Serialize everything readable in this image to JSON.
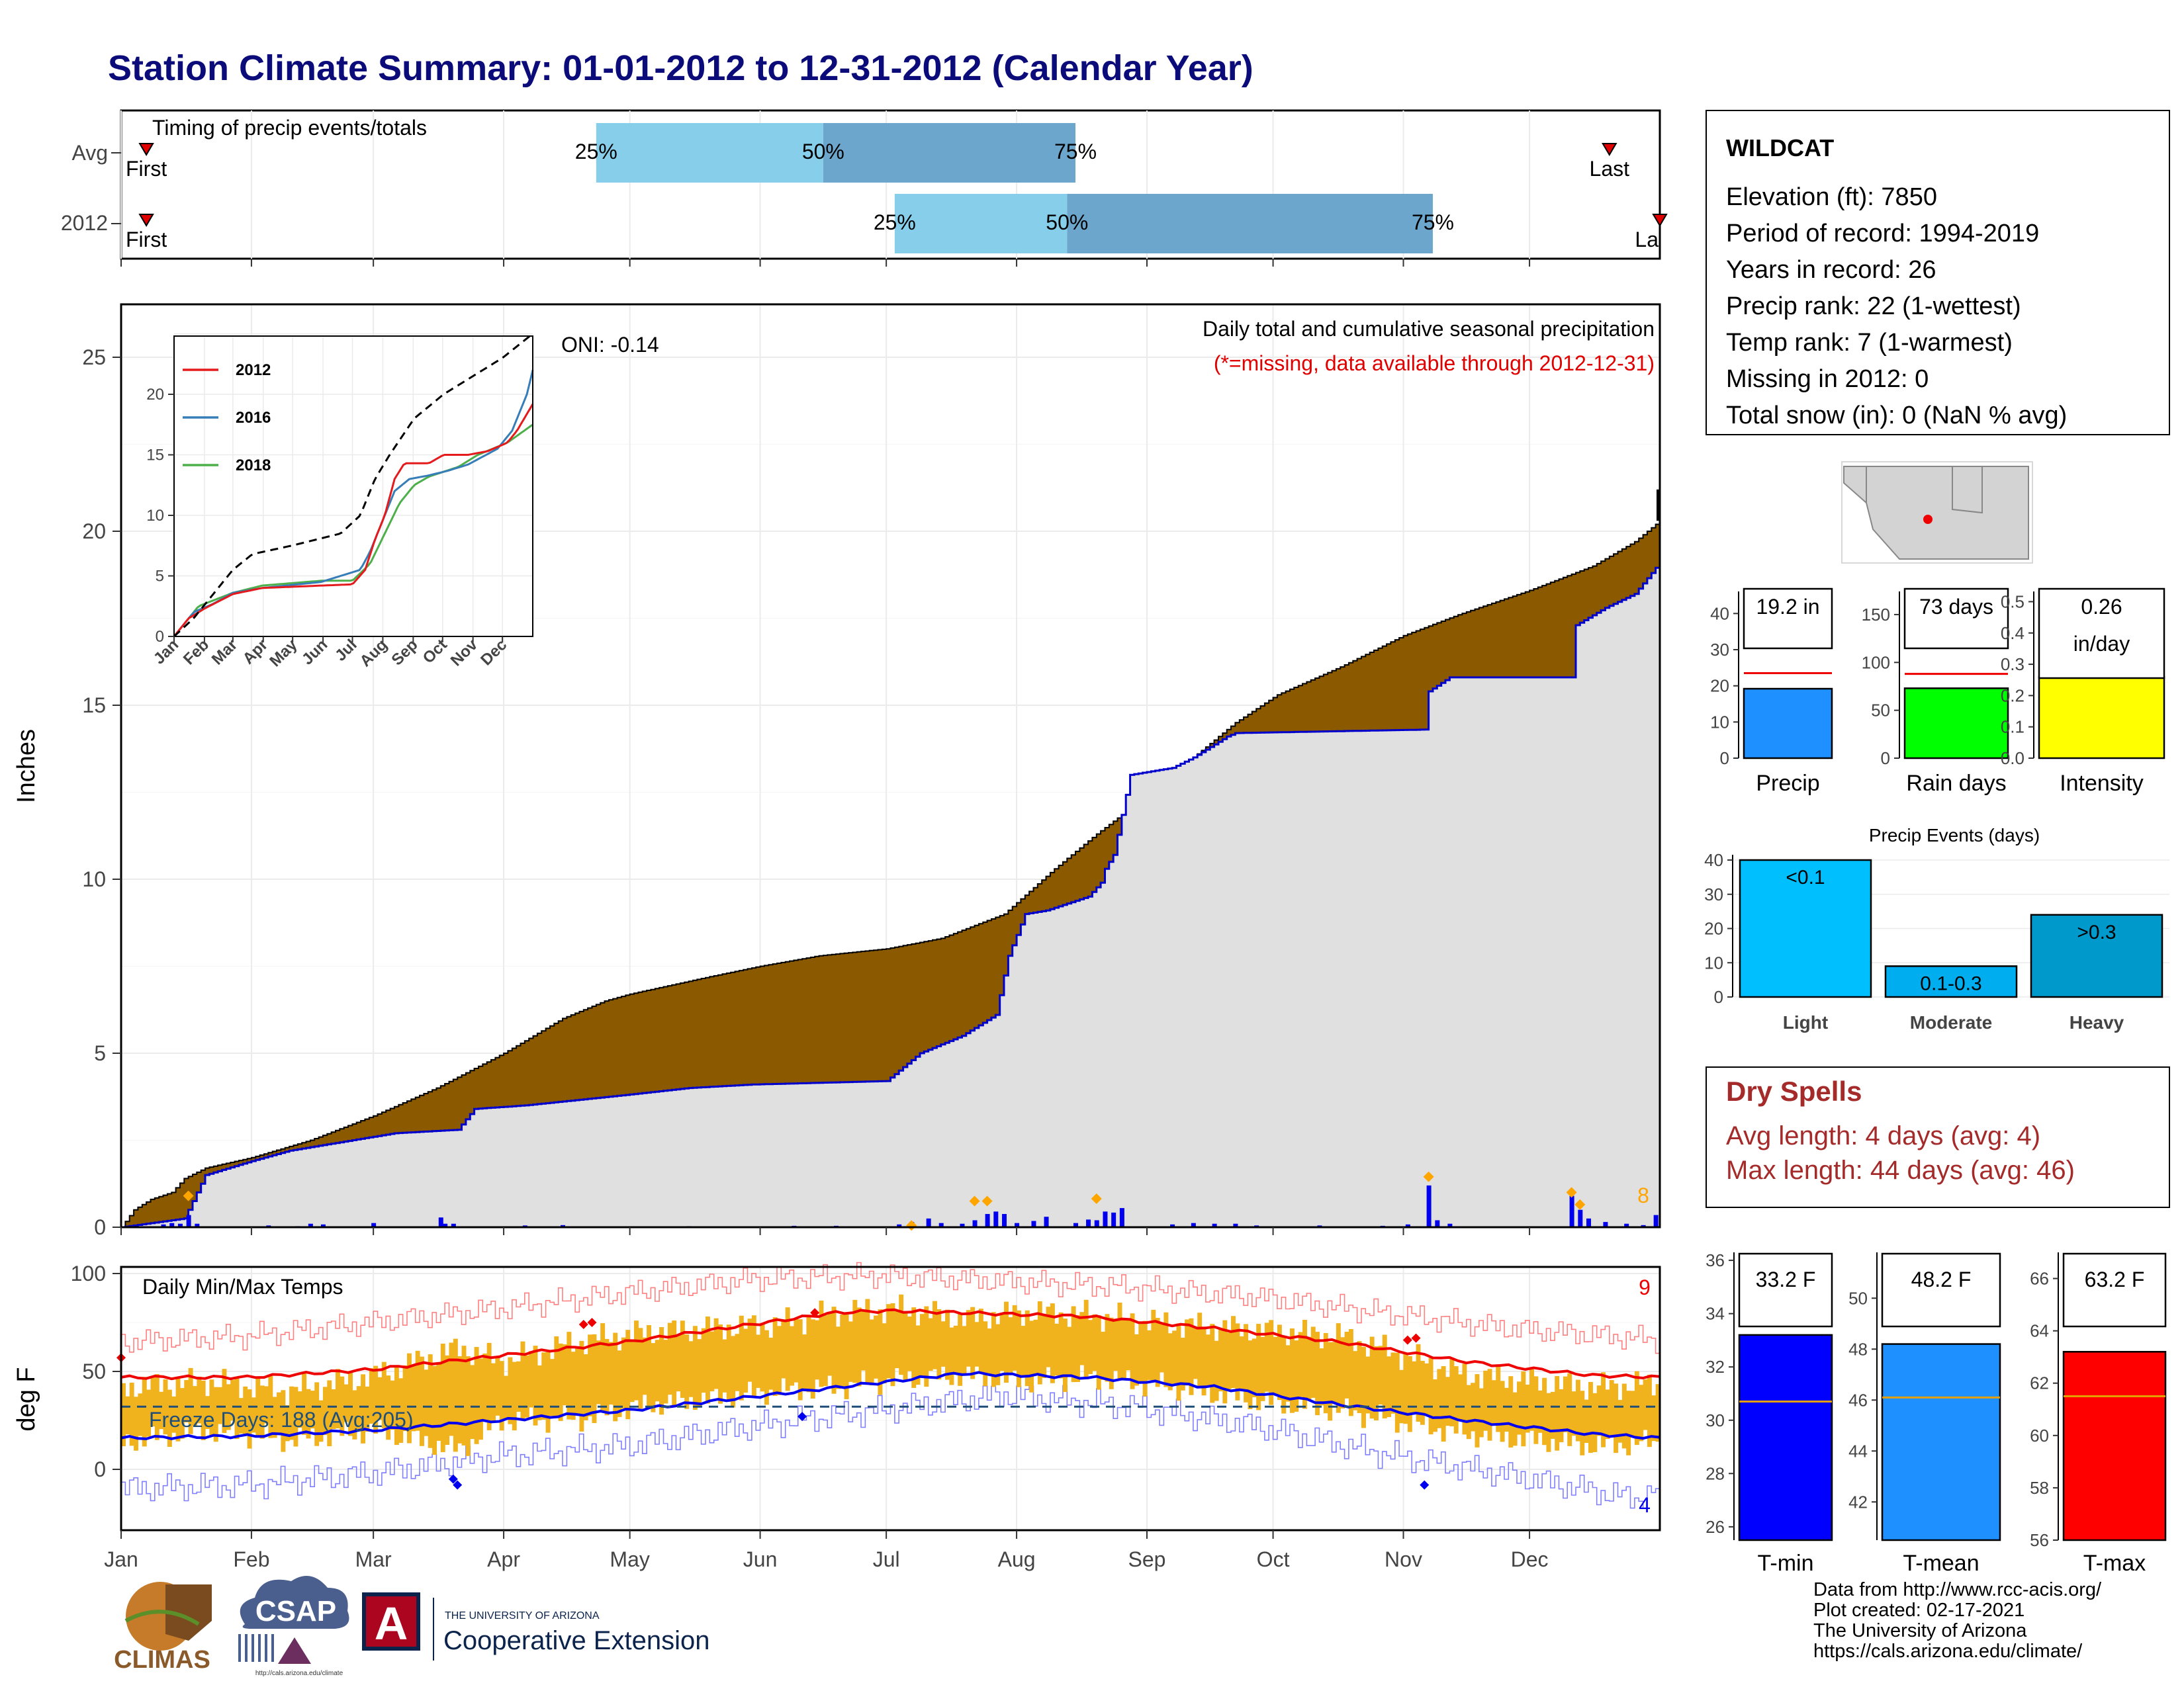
{
  "title": "Station Climate Summary: 01-01-2012 to 12-31-2012 (Calendar Year)",
  "timing": {
    "title": "Timing of precip events/totals",
    "row_labels": [
      "Avg",
      "2012"
    ],
    "first_label": "First",
    "last_label": "Last",
    "last_label_clipped": "La",
    "pct_labels": [
      "25%",
      "50%",
      "75%"
    ],
    "avg": {
      "first_doy": 6,
      "p25_doy": 113,
      "p50_doy": 167,
      "p75_doy": 227,
      "last_doy": 354
    },
    "y2012": {
      "first_doy": 6,
      "p25_doy": 184,
      "p50_doy": 225,
      "p75_doy": 312,
      "last_doy": 366
    }
  },
  "main": {
    "ylabel": "Inches",
    "y_ticks": [
      "0",
      "5",
      "10",
      "15",
      "20",
      "25"
    ],
    "annot_title": "Daily total and cumulative seasonal precipitation",
    "annot_missing": "(*=missing, data available through 2012-12-31)",
    "oni": "ONI: -0.14",
    "count_label": "8",
    "colors": {
      "avg_fill": "#8B5A00",
      "year_fill": "#E0E0E0",
      "year_line": "#0000CC",
      "bars": "#0000EE",
      "marker": "#FFA500"
    },
    "avg_cum": [
      [
        0,
        0
      ],
      [
        3,
        0.5
      ],
      [
        7,
        0.8
      ],
      [
        12,
        1.0
      ],
      [
        15,
        1.4
      ],
      [
        20,
        1.7
      ],
      [
        31,
        2.0
      ],
      [
        45,
        2.5
      ],
      [
        60,
        3.2
      ],
      [
        75,
        4.0
      ],
      [
        91,
        5.0
      ],
      [
        105,
        6.0
      ],
      [
        115,
        6.5
      ],
      [
        121,
        6.7
      ],
      [
        140,
        7.2
      ],
      [
        152,
        7.5
      ],
      [
        166,
        7.8
      ],
      [
        182,
        8.0
      ],
      [
        195,
        8.3
      ],
      [
        210,
        9.0
      ],
      [
        222,
        10.3
      ],
      [
        232,
        11.3
      ],
      [
        244,
        12.4
      ],
      [
        255,
        13.5
      ],
      [
        265,
        14.5
      ],
      [
        275,
        15.3
      ],
      [
        290,
        16.1
      ],
      [
        305,
        17.0
      ],
      [
        318,
        17.6
      ],
      [
        335,
        18.3
      ],
      [
        350,
        19.0
      ],
      [
        360,
        19.7
      ],
      [
        366,
        20.3
      ]
    ],
    "year_cum": [
      [
        0,
        0
      ],
      [
        15,
        0.25
      ],
      [
        18,
        1.0
      ],
      [
        20,
        1.5
      ],
      [
        31,
        1.9
      ],
      [
        40,
        2.2
      ],
      [
        50,
        2.4
      ],
      [
        65,
        2.7
      ],
      [
        80,
        2.8
      ],
      [
        84,
        3.4
      ],
      [
        96,
        3.5
      ],
      [
        120,
        3.8
      ],
      [
        135,
        4.0
      ],
      [
        150,
        4.1
      ],
      [
        182,
        4.2
      ],
      [
        190,
        5.0
      ],
      [
        200,
        5.5
      ],
      [
        208,
        6.1
      ],
      [
        211,
        7.8
      ],
      [
        215,
        9.0
      ],
      [
        220,
        9.1
      ],
      [
        230,
        9.5
      ],
      [
        233,
        9.9
      ],
      [
        234,
        10.3
      ],
      [
        236,
        10.7
      ],
      [
        240,
        13.0
      ],
      [
        250,
        13.2
      ],
      [
        255,
        13.5
      ],
      [
        263,
        14.1
      ],
      [
        265,
        14.2
      ],
      [
        310,
        14.3
      ],
      [
        311,
        15.4
      ],
      [
        316,
        15.8
      ],
      [
        345,
        15.8
      ],
      [
        346,
        17.3
      ],
      [
        353,
        17.8
      ],
      [
        360,
        18.2
      ],
      [
        366,
        19.1
      ]
    ],
    "precip_events": [
      [
        10,
        0.08
      ],
      [
        12,
        0.12
      ],
      [
        14,
        0.1
      ],
      [
        16,
        0.35
      ],
      [
        18,
        0.1
      ],
      [
        35,
        0.05
      ],
      [
        42,
        0.03
      ],
      [
        45,
        0.1
      ],
      [
        48,
        0.08
      ],
      [
        60,
        0.12
      ],
      [
        76,
        0.28
      ],
      [
        77,
        0.1
      ],
      [
        79,
        0.1
      ],
      [
        96,
        0.05
      ],
      [
        105,
        0.06
      ],
      [
        135,
        0.03
      ],
      [
        160,
        0.04
      ],
      [
        170,
        0.04
      ],
      [
        185,
        0.08
      ],
      [
        188,
        0.15
      ],
      [
        192,
        0.25
      ],
      [
        195,
        0.12
      ],
      [
        200,
        0.1
      ],
      [
        203,
        0.2
      ],
      [
        206,
        0.38
      ],
      [
        208,
        0.45
      ],
      [
        210,
        0.38
      ],
      [
        213,
        0.12
      ],
      [
        217,
        0.18
      ],
      [
        220,
        0.3
      ],
      [
        227,
        0.12
      ],
      [
        230,
        0.22
      ],
      [
        232,
        0.2
      ],
      [
        234,
        0.45
      ],
      [
        236,
        0.42
      ],
      [
        238,
        0.55
      ],
      [
        250,
        0.08
      ],
      [
        255,
        0.12
      ],
      [
        260,
        0.1
      ],
      [
        265,
        0.1
      ],
      [
        270,
        0.05
      ],
      [
        285,
        0.05
      ],
      [
        300,
        0.04
      ],
      [
        306,
        0.08
      ],
      [
        311,
        1.2
      ],
      [
        313,
        0.2
      ],
      [
        316,
        0.1
      ],
      [
        345,
        0.9
      ],
      [
        347,
        0.5
      ],
      [
        349,
        0.25
      ],
      [
        353,
        0.15
      ],
      [
        358,
        0.1
      ],
      [
        362,
        0.06
      ],
      [
        365,
        0.35
      ]
    ],
    "markers": [
      [
        16,
        0.9
      ],
      [
        188,
        0.05
      ],
      [
        203,
        0.75
      ],
      [
        206,
        0.75
      ],
      [
        232,
        0.82
      ],
      [
        311,
        1.45
      ],
      [
        345,
        1.0
      ],
      [
        347,
        0.65
      ]
    ]
  },
  "inset": {
    "legend": [
      {
        "name": "2012",
        "color": "#E41A1C"
      },
      {
        "name": "2016",
        "color": "#377EB8"
      },
      {
        "name": "2018",
        "color": "#4DAF4A"
      }
    ],
    "y_ticks": [
      "0",
      "5",
      "10",
      "15",
      "20"
    ],
    "months": [
      "Jan",
      "Feb",
      "Mar",
      "Apr",
      "May",
      "Jun",
      "Jul",
      "Aug",
      "Sep",
      "Oct",
      "Nov",
      "Dec"
    ],
    "avg": [
      [
        0,
        0
      ],
      [
        20,
        1.5
      ],
      [
        40,
        3.5
      ],
      [
        60,
        5.5
      ],
      [
        80,
        6.8
      ],
      [
        120,
        7.5
      ],
      [
        170,
        8.5
      ],
      [
        190,
        10.0
      ],
      [
        205,
        13.0
      ],
      [
        220,
        15.0
      ],
      [
        245,
        18.0
      ],
      [
        275,
        20.0
      ],
      [
        305,
        21.5
      ],
      [
        335,
        23.0
      ],
      [
        366,
        25.0
      ]
    ],
    "s2012": [
      [
        0,
        0
      ],
      [
        15,
        1.5
      ],
      [
        31,
        2.3
      ],
      [
        60,
        3.5
      ],
      [
        90,
        4.0
      ],
      [
        150,
        4.2
      ],
      [
        182,
        4.3
      ],
      [
        195,
        5.5
      ],
      [
        205,
        8.0
      ],
      [
        215,
        10.0
      ],
      [
        225,
        13.0
      ],
      [
        235,
        14.3
      ],
      [
        260,
        14.3
      ],
      [
        275,
        15.0
      ],
      [
        300,
        15.0
      ],
      [
        320,
        15.3
      ],
      [
        340,
        16.0
      ],
      [
        350,
        17.0
      ],
      [
        366,
        19.2
      ]
    ],
    "s2016": [
      [
        0,
        0
      ],
      [
        20,
        2.0
      ],
      [
        40,
        2.7
      ],
      [
        60,
        3.6
      ],
      [
        90,
        4.0
      ],
      [
        150,
        4.5
      ],
      [
        190,
        5.5
      ],
      [
        200,
        7.0
      ],
      [
        210,
        9.0
      ],
      [
        225,
        12.0
      ],
      [
        240,
        13.0
      ],
      [
        260,
        13.3
      ],
      [
        280,
        13.7
      ],
      [
        300,
        14.2
      ],
      [
        330,
        15.5
      ],
      [
        345,
        17.0
      ],
      [
        360,
        20.0
      ],
      [
        366,
        22.0
      ]
    ],
    "s2018": [
      [
        0,
        0
      ],
      [
        25,
        2.5
      ],
      [
        60,
        3.6
      ],
      [
        90,
        4.2
      ],
      [
        150,
        4.6
      ],
      [
        182,
        4.6
      ],
      [
        200,
        6.0
      ],
      [
        215,
        8.5
      ],
      [
        230,
        11.0
      ],
      [
        245,
        12.5
      ],
      [
        260,
        13.2
      ],
      [
        290,
        14.0
      ],
      [
        310,
        15.0
      ],
      [
        340,
        16.0
      ],
      [
        366,
        17.5
      ]
    ]
  },
  "station": {
    "name": "WILDCAT",
    "lines": [
      "Elevation (ft): 7850",
      "Period of record: 1994-2019",
      "Years in record: 26",
      "Precip rank: 22 (1-wettest)",
      "Temp rank: 7 (1-warmest)",
      "Missing in 2012: 0",
      "Total snow (in): 0 (NaN % avg)"
    ]
  },
  "mini_bars": [
    {
      "label": "Precip",
      "box_label": "19.2 in",
      "value": 19.2,
      "avg": 23.5,
      "ymax": 45,
      "ticks": [
        0,
        10,
        20,
        30,
        40
      ],
      "color": "#1E90FF"
    },
    {
      "label": "Rain days",
      "box_label": "73 days",
      "value": 73,
      "avg": 88,
      "ymax": 170,
      "ticks": [
        0,
        50,
        100,
        150
      ],
      "color": "#00FF00"
    },
    {
      "label": "Intensity",
      "box_label": "0.26",
      "box_label2": "in/day",
      "value": 0.26,
      "avg": 0.265,
      "ymax": 0.52,
      "ticks": [
        "0.0",
        "0.1",
        "0.2",
        "0.3",
        "0.4",
        "0.5"
      ],
      "color": "#FFFF00"
    }
  ],
  "events": {
    "title": "Precip Events (days)",
    "categories": [
      "Light",
      "Moderate",
      "Heavy"
    ],
    "values": [
      40,
      9,
      24
    ],
    "bar_labels": [
      "<0.1",
      "0.1-0.3",
      ">0.3"
    ],
    "colors": [
      "#00BFFF",
      "#00AEEF",
      "#0099CC"
    ],
    "ticks": [
      0,
      10,
      20,
      30,
      40
    ]
  },
  "dry_spells": {
    "title": "Dry Spells",
    "avg_line": "Avg length: 4 days (avg: 4)",
    "max_line": "Max length: 44 days (avg: 46)"
  },
  "temps": {
    "ylabel": "deg F",
    "title": "Daily Min/Max Temps",
    "freeze": "Freeze Days: 188 (Avg:205)",
    "count_hot": "9",
    "count_cold": "4",
    "y_ticks": [
      "0",
      "50",
      "100"
    ],
    "avg_max": [
      [
        0,
        47
      ],
      [
        30,
        47
      ],
      [
        60,
        51
      ],
      [
        90,
        58
      ],
      [
        120,
        65
      ],
      [
        150,
        74
      ],
      [
        170,
        80
      ],
      [
        182,
        81
      ],
      [
        200,
        80
      ],
      [
        230,
        78
      ],
      [
        260,
        72
      ],
      [
        290,
        65
      ],
      [
        320,
        55
      ],
      [
        350,
        48
      ],
      [
        366,
        47
      ]
    ],
    "avg_min": [
      [
        0,
        16
      ],
      [
        30,
        17
      ],
      [
        60,
        20
      ],
      [
        90,
        25
      ],
      [
        120,
        30
      ],
      [
        150,
        37
      ],
      [
        175,
        43
      ],
      [
        200,
        49
      ],
      [
        230,
        47
      ],
      [
        260,
        42
      ],
      [
        290,
        33
      ],
      [
        320,
        25
      ],
      [
        350,
        18
      ],
      [
        366,
        16
      ]
    ],
    "rec_max": [
      [
        0,
        65
      ],
      [
        30,
        68
      ],
      [
        60,
        75
      ],
      [
        90,
        82
      ],
      [
        120,
        90
      ],
      [
        150,
        97
      ],
      [
        180,
        99
      ],
      [
        210,
        96
      ],
      [
        240,
        93
      ],
      [
        270,
        88
      ],
      [
        300,
        80
      ],
      [
        330,
        72
      ],
      [
        366,
        66
      ]
    ],
    "rec_min": [
      [
        0,
        -10
      ],
      [
        30,
        -8
      ],
      [
        60,
        -2
      ],
      [
        90,
        7
      ],
      [
        120,
        12
      ],
      [
        150,
        22
      ],
      [
        180,
        30
      ],
      [
        210,
        38
      ],
      [
        240,
        32
      ],
      [
        270,
        22
      ],
      [
        300,
        8
      ],
      [
        330,
        -3
      ],
      [
        360,
        -15
      ],
      [
        366,
        -10
      ]
    ],
    "band_max": [
      [
        0,
        42
      ],
      [
        20,
        45
      ],
      [
        40,
        40
      ],
      [
        60,
        48
      ],
      [
        80,
        62
      ],
      [
        90,
        55
      ],
      [
        110,
        66
      ],
      [
        125,
        70
      ],
      [
        140,
        72
      ],
      [
        155,
        74
      ],
      [
        170,
        80
      ],
      [
        185,
        82
      ],
      [
        200,
        77
      ],
      [
        215,
        80
      ],
      [
        230,
        79
      ],
      [
        250,
        74
      ],
      [
        270,
        71
      ],
      [
        290,
        68
      ],
      [
        305,
        58
      ],
      [
        320,
        48
      ],
      [
        335,
        45
      ],
      [
        350,
        42
      ],
      [
        366,
        44
      ]
    ],
    "band_min": [
      [
        0,
        14
      ],
      [
        20,
        20
      ],
      [
        40,
        15
      ],
      [
        60,
        20
      ],
      [
        80,
        10
      ],
      [
        90,
        25
      ],
      [
        110,
        26
      ],
      [
        125,
        33
      ],
      [
        140,
        36
      ],
      [
        155,
        40
      ],
      [
        170,
        42
      ],
      [
        185,
        46
      ],
      [
        200,
        48
      ],
      [
        215,
        45
      ],
      [
        230,
        47
      ],
      [
        250,
        42
      ],
      [
        270,
        35
      ],
      [
        290,
        30
      ],
      [
        305,
        24
      ],
      [
        320,
        18
      ],
      [
        335,
        15
      ],
      [
        350,
        12
      ],
      [
        366,
        14
      ]
    ],
    "record_highs": [
      [
        0,
        57
      ],
      [
        110,
        74
      ],
      [
        112,
        75
      ],
      [
        165,
        80
      ],
      [
        306,
        66
      ],
      [
        308,
        67
      ]
    ],
    "record_lows": [
      [
        79,
        -5
      ],
      [
        80,
        -8
      ],
      [
        162,
        27
      ],
      [
        310,
        -8
      ]
    ],
    "colors": {
      "band": "#F0B31E",
      "avg_max": "#EE0000",
      "avg_min": "#0000EE",
      "rec_max": "#FF8080",
      "rec_min": "#8080FF",
      "freeze": "#1F4E79"
    }
  },
  "months": [
    "Jan",
    "Feb",
    "Mar",
    "Apr",
    "May",
    "Jun",
    "Jul",
    "Aug",
    "Sep",
    "Oct",
    "Nov",
    "Dec"
  ],
  "temp_bars": [
    {
      "label": "T-min",
      "box_label": "33.2 F",
      "value": 33.2,
      "avg": 30.7,
      "ymin": 25.5,
      "ymax": 36.3,
      "ticks": [
        26,
        28,
        30,
        32,
        34,
        36
      ],
      "color": "#0000FF"
    },
    {
      "label": "T-mean",
      "box_label": "48.2 F",
      "value": 48.2,
      "avg": 46.1,
      "ymin": 40.5,
      "ymax": 51.8,
      "ticks": [
        42,
        44,
        46,
        48,
        50
      ],
      "color": "#1E90FF"
    },
    {
      "label": "T-max",
      "box_label": "63.2 F",
      "value": 63.2,
      "avg": 61.5,
      "ymin": 56,
      "ymax": 67,
      "ticks": [
        56,
        58,
        60,
        62,
        64,
        66
      ],
      "color": "#FF0000"
    }
  ],
  "footer": {
    "lines": [
      "Data from http://www.rcc-acis.org/",
      "Plot created: 02-17-2021",
      "The University of Arizona",
      "https://cals.arizona.edu/climate/"
    ],
    "climas": "CLIMAS",
    "csap": "CSAP",
    "csap_url": "http://cals.arizona.edu/climate",
    "ua_small": "THE UNIVERSITY OF ARIZONA",
    "ua_big": "Cooperative Extension",
    "ua_letter": "A"
  }
}
